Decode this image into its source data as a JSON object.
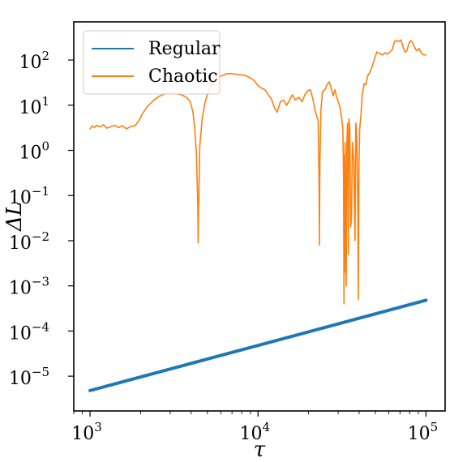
{
  "chart_data": {
    "type": "line",
    "title": "",
    "xlabel": "τ",
    "ylabel": "ΔL",
    "xscale": "log",
    "yscale": "log",
    "xlim": [
      800,
      130000
    ],
    "ylim": [
      1.7e-06,
      700
    ],
    "grid": false,
    "legend_position": "top-left",
    "x_ticks": [
      {
        "value": 1000,
        "base": "10",
        "exp": "3"
      },
      {
        "value": 10000,
        "base": "10",
        "exp": "4"
      },
      {
        "value": 100000,
        "base": "10",
        "exp": "5"
      }
    ],
    "y_ticks": [
      {
        "value": 1e-05,
        "base": "10",
        "exp": "−5"
      },
      {
        "value": 0.0001,
        "base": "10",
        "exp": "−4"
      },
      {
        "value": 0.001,
        "base": "10",
        "exp": "−3"
      },
      {
        "value": 0.01,
        "base": "10",
        "exp": "−2"
      },
      {
        "value": 0.1,
        "base": "10",
        "exp": "−1"
      },
      {
        "value": 1,
        "base": "10",
        "exp": "0"
      },
      {
        "value": 10,
        "base": "10",
        "exp": "1"
      },
      {
        "value": 100,
        "base": "10",
        "exp": "2"
      }
    ],
    "series": [
      {
        "name": "Regular",
        "color": "#1f77b4",
        "points": [
          [
            1000,
            4.8e-06
          ],
          [
            100000,
            0.00048
          ]
        ]
      },
      {
        "name": "Chaotic",
        "color": "#ff7f0e",
        "points": [
          [
            1000,
            3.0
          ],
          [
            1030,
            3.5
          ],
          [
            1060,
            3.2
          ],
          [
            1100,
            3.6
          ],
          [
            1150,
            3.3
          ],
          [
            1200,
            3.7
          ],
          [
            1260,
            3.1
          ],
          [
            1320,
            3.3
          ],
          [
            1400,
            3.6
          ],
          [
            1480,
            3.2
          ],
          [
            1560,
            3.5
          ],
          [
            1650,
            3.0
          ],
          [
            1750,
            3.4
          ],
          [
            1850,
            3.5
          ],
          [
            1950,
            4.5
          ],
          [
            2050,
            6.5
          ],
          [
            2200,
            9.5
          ],
          [
            2400,
            13
          ],
          [
            2600,
            16
          ],
          [
            2800,
            18
          ],
          [
            3000,
            18.5
          ],
          [
            3250,
            18
          ],
          [
            3500,
            17
          ],
          [
            3750,
            15
          ],
          [
            3950,
            12
          ],
          [
            4100,
            7
          ],
          [
            4200,
            3
          ],
          [
            4300,
            0.8
          ],
          [
            4380,
            0.06
          ],
          [
            4400,
            0.009
          ],
          [
            4430,
            0.05
          ],
          [
            4500,
            1.2
          ],
          [
            4650,
            5
          ],
          [
            4850,
            12
          ],
          [
            5100,
            22
          ],
          [
            5500,
            35
          ],
          [
            6000,
            44
          ],
          [
            6500,
            50
          ],
          [
            7000,
            50
          ],
          [
            7500,
            48
          ],
          [
            8000,
            47
          ],
          [
            8500,
            45
          ],
          [
            9000,
            40
          ],
          [
            9500,
            35
          ],
          [
            10000,
            27
          ],
          [
            10500,
            24
          ],
          [
            11000,
            22
          ],
          [
            11500,
            17
          ],
          [
            12000,
            14
          ],
          [
            12500,
            9
          ],
          [
            13000,
            7
          ],
          [
            13600,
            12
          ],
          [
            14200,
            13
          ],
          [
            14800,
            10
          ],
          [
            15400,
            13
          ],
          [
            16000,
            17
          ],
          [
            16700,
            13
          ],
          [
            17500,
            15
          ],
          [
            18300,
            12
          ],
          [
            19000,
            17
          ],
          [
            19800,
            21
          ],
          [
            20500,
            22
          ],
          [
            21200,
            14
          ],
          [
            21800,
            8
          ],
          [
            22300,
            6
          ],
          [
            22800,
            4.5
          ],
          [
            23100,
            0.2
          ],
          [
            23200,
            0.008
          ],
          [
            23350,
            0.5
          ],
          [
            23700,
            8
          ],
          [
            24200,
            20
          ],
          [
            25000,
            22
          ],
          [
            25800,
            29
          ],
          [
            26500,
            33
          ],
          [
            27200,
            25
          ],
          [
            28000,
            16
          ],
          [
            28700,
            22
          ],
          [
            29400,
            15
          ],
          [
            30000,
            12
          ],
          [
            30800,
            9
          ],
          [
            31500,
            5
          ],
          [
            32000,
            3
          ],
          [
            32300,
            0.3
          ],
          [
            32500,
            0.0004
          ],
          [
            32650,
            0.8
          ],
          [
            32800,
            0.002
          ],
          [
            33000,
            1.5
          ],
          [
            33200,
            0.15
          ],
          [
            33500,
            0.001
          ],
          [
            33800,
            1.2
          ],
          [
            34100,
            4
          ],
          [
            34300,
            0.5
          ],
          [
            34500,
            0.005
          ],
          [
            34800,
            5
          ],
          [
            35200,
            3
          ],
          [
            35600,
            0.02
          ],
          [
            36000,
            0.03
          ],
          [
            36500,
            1.5
          ],
          [
            37200,
            0.6
          ],
          [
            37800,
            0.01
          ],
          [
            38200,
            4
          ],
          [
            38600,
            3
          ],
          [
            39000,
            0.3
          ],
          [
            39300,
            0.05
          ],
          [
            39600,
            0.0005
          ],
          [
            39900,
            0.5
          ],
          [
            40300,
            3
          ],
          [
            41000,
            6
          ],
          [
            41800,
            18
          ],
          [
            42800,
            30
          ],
          [
            43800,
            28
          ],
          [
            45000,
            45
          ],
          [
            46500,
            55
          ],
          [
            48000,
            75
          ],
          [
            49500,
            110
          ],
          [
            51000,
            150
          ],
          [
            53000,
            140
          ],
          [
            55000,
            130
          ],
          [
            57000,
            145
          ],
          [
            59000,
            135
          ],
          [
            61000,
            150
          ],
          [
            63000,
            170
          ],
          [
            65000,
            260
          ],
          [
            67000,
            270
          ],
          [
            69000,
            255
          ],
          [
            71000,
            280
          ],
          [
            73000,
            200
          ],
          [
            75000,
            150
          ],
          [
            77000,
            160
          ],
          [
            79000,
            230
          ],
          [
            81000,
            270
          ],
          [
            83000,
            250
          ],
          [
            85000,
            200
          ],
          [
            87000,
            170
          ],
          [
            89000,
            160
          ],
          [
            91000,
            180
          ],
          [
            93000,
            150
          ],
          [
            95000,
            140
          ],
          [
            97000,
            130
          ],
          [
            100000,
            130
          ]
        ]
      }
    ]
  }
}
